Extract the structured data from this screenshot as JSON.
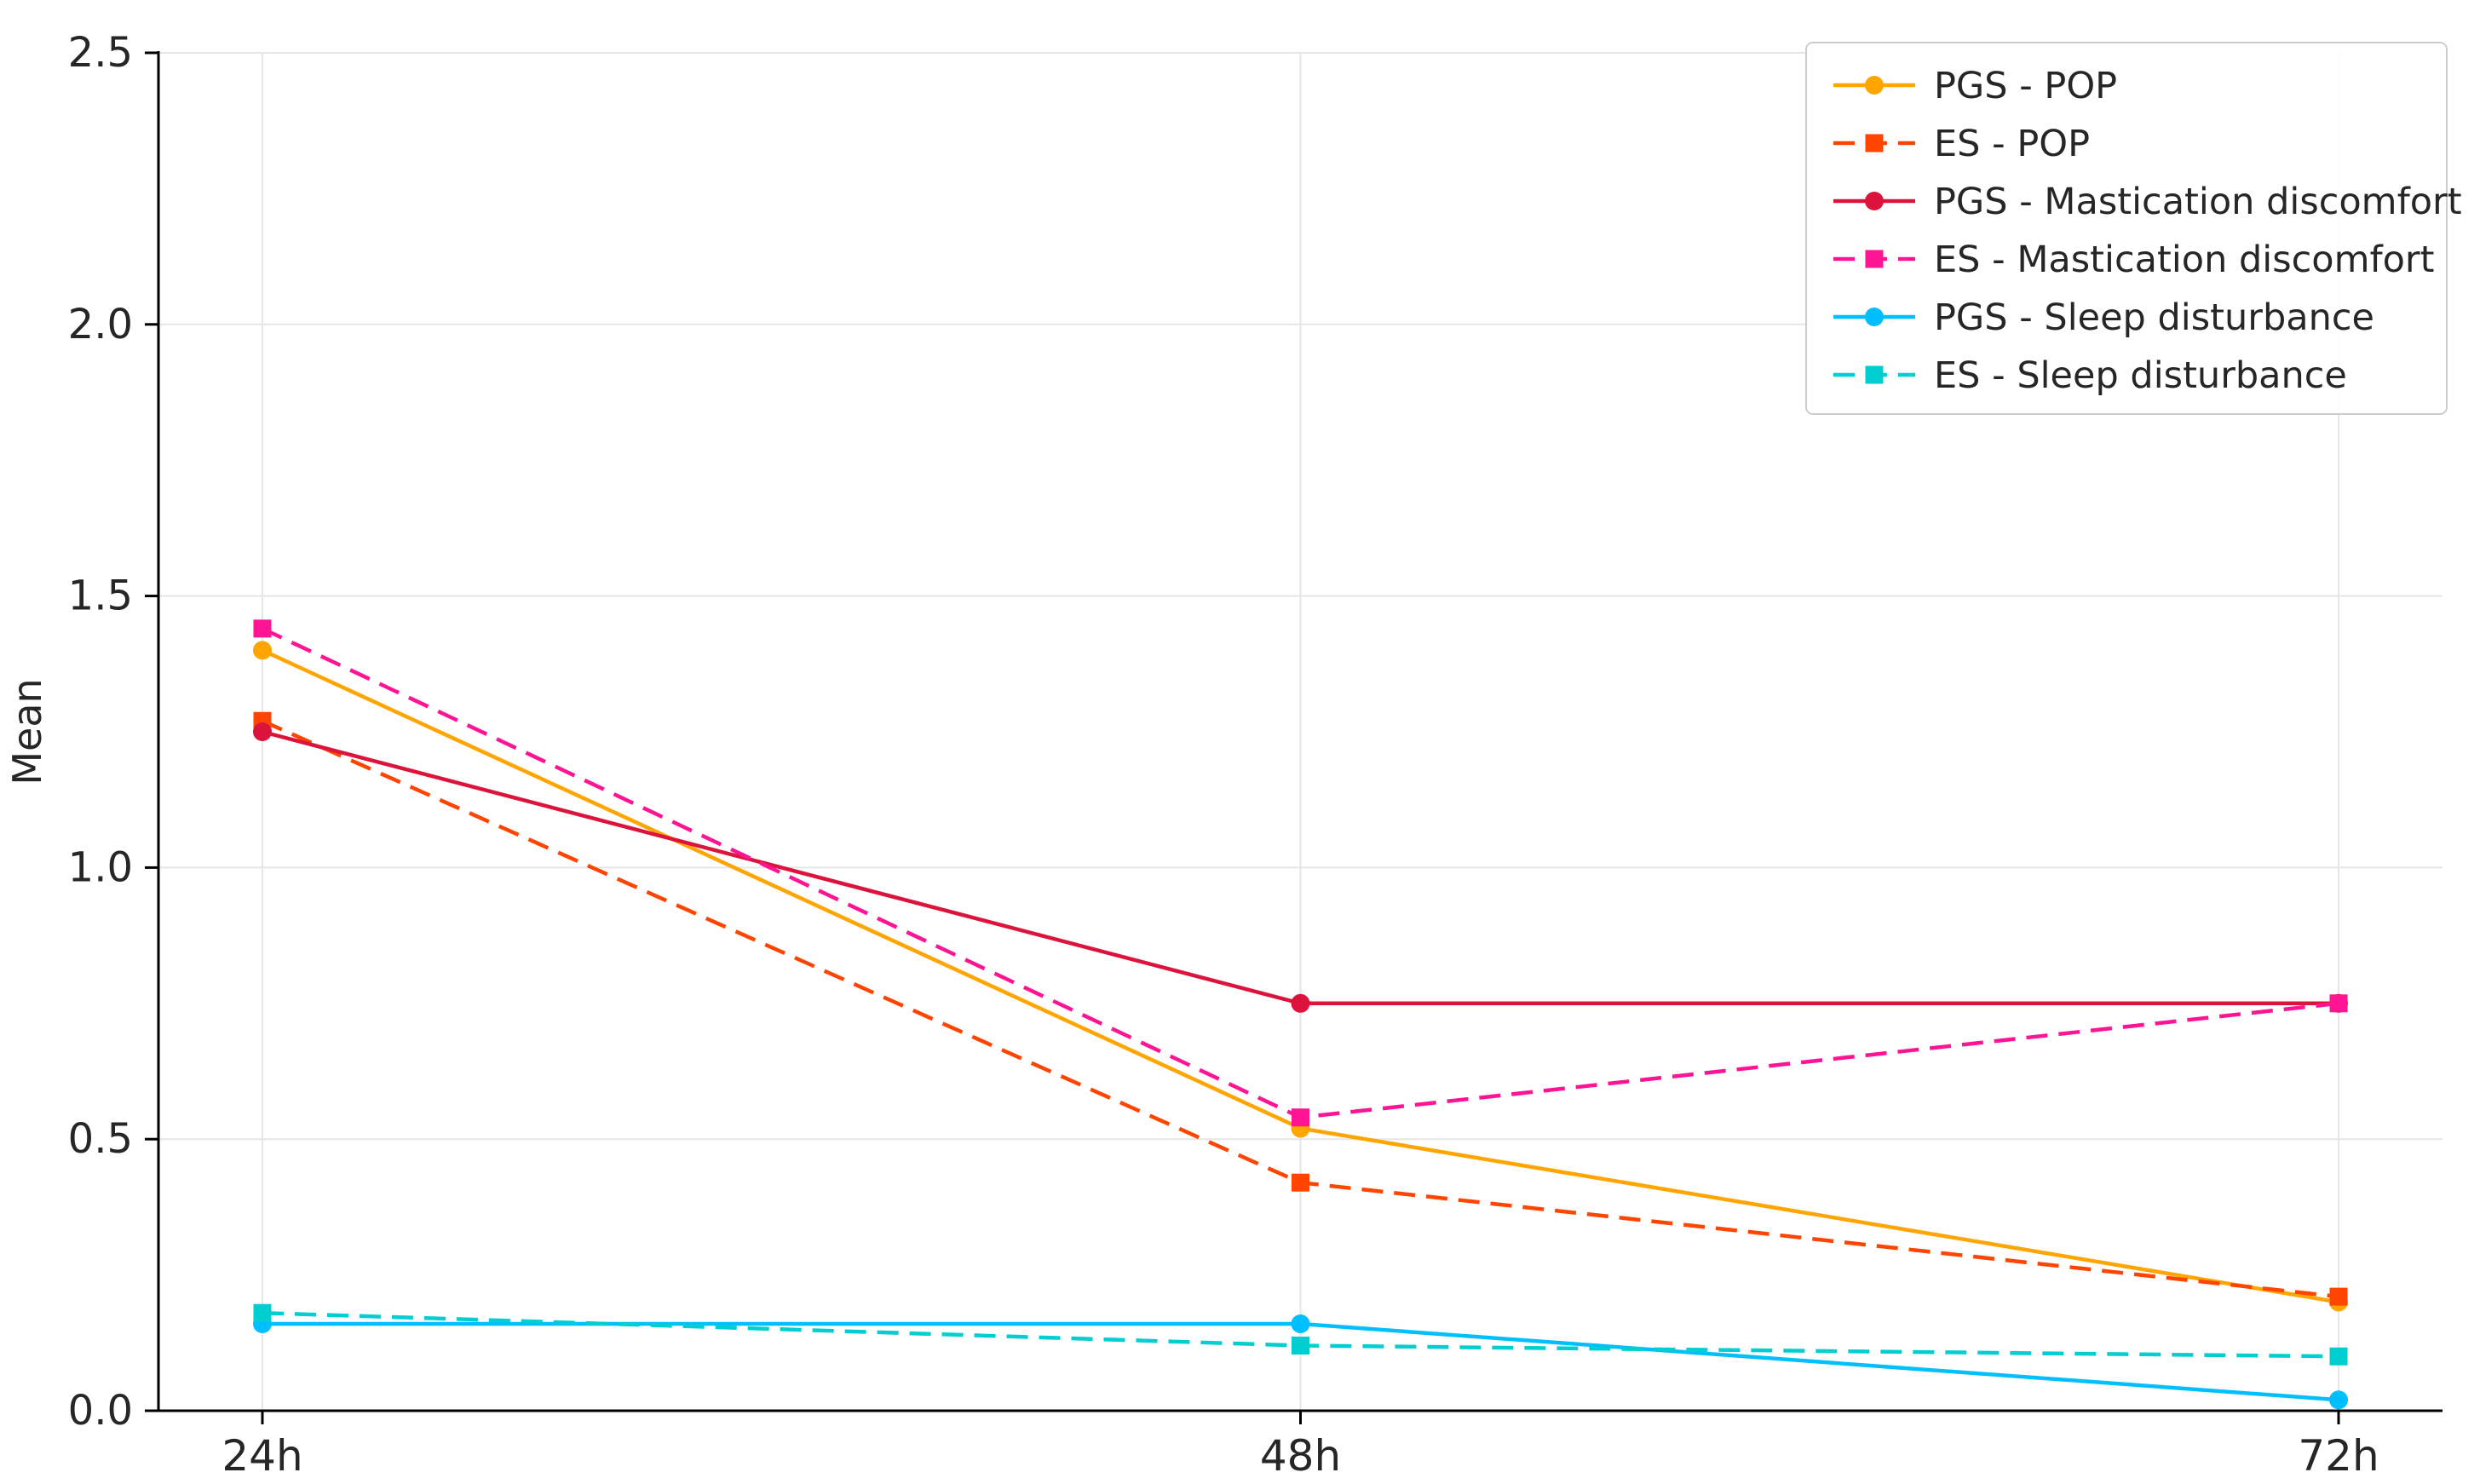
{
  "chart_data": {
    "type": "line",
    "title": "",
    "xlabel": "",
    "ylabel": "Mean",
    "x_categories": [
      "24h",
      "48h",
      "72h"
    ],
    "ylim": [
      0,
      2.5
    ],
    "yticks": [
      0,
      0.5,
      1.0,
      1.5,
      2.0,
      2.5
    ],
    "ytick_labels": [
      "0.0",
      "0.5",
      "1.0",
      "1.5",
      "2.0",
      "2.5"
    ],
    "grid": true,
    "legend_position": "upper right",
    "series": [
      {
        "name": "PGS - POP",
        "values": [
          1.4,
          0.52,
          0.2
        ],
        "color": "#FFA500",
        "line_style": "solid",
        "marker": "circle"
      },
      {
        "name": "ES - POP",
        "values": [
          1.27,
          0.42,
          0.21
        ],
        "color": "#FF4500",
        "line_style": "dashed",
        "marker": "square"
      },
      {
        "name": "PGS - Mastication discomfort",
        "values": [
          1.25,
          0.75,
          0.75
        ],
        "color": "#DC143C",
        "line_style": "solid",
        "marker": "circle"
      },
      {
        "name": "ES - Mastication discomfort",
        "values": [
          1.44,
          0.54,
          0.75
        ],
        "color": "#FF1493",
        "line_style": "dashed",
        "marker": "square"
      },
      {
        "name": "PGS - Sleep disturbance",
        "values": [
          0.16,
          0.16,
          0.02
        ],
        "color": "#00BFFF",
        "line_style": "solid",
        "marker": "circle"
      },
      {
        "name": "ES - Sleep disturbance",
        "values": [
          0.18,
          0.12,
          0.1
        ],
        "color": "#00CED1",
        "line_style": "dashed",
        "marker": "square"
      }
    ]
  },
  "colors": {
    "background": "#ffffff",
    "grid": "#e6e6e6",
    "axis": "#000000",
    "tick_text": "#262626",
    "legend_border": "#cccccc",
    "legend_background": "#ffffff"
  }
}
